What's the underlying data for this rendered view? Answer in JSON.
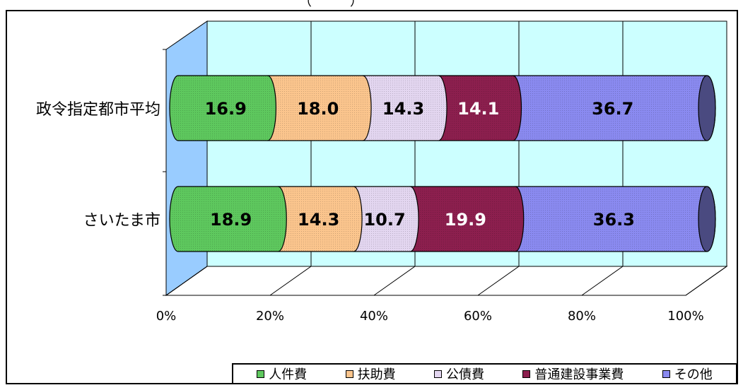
{
  "chart_data": {
    "type": "bar",
    "orientation": "horizontal",
    "stacked": "percent",
    "style": "3d-cylinder",
    "title": "（　　　）",
    "categories": [
      "政令指定都市平均",
      "さいたま市"
    ],
    "series": [
      {
        "name": "人件費",
        "values": [
          16.9,
          18.9
        ],
        "color": "#5ec85e",
        "label_color": "#000000"
      },
      {
        "name": "扶助費",
        "values": [
          18.0,
          14.3
        ],
        "color": "#fbc58d",
        "label_color": "#000000"
      },
      {
        "name": "公債費",
        "values": [
          14.3,
          10.7
        ],
        "color": "#e3d6f0",
        "label_color": "#000000"
      },
      {
        "name": "普通建設事業費",
        "values": [
          14.1,
          19.9
        ],
        "color": "#8c1f4e",
        "label_color": "#ffffff"
      },
      {
        "name": "その他",
        "values": [
          36.7,
          36.3
        ],
        "color": "#8a8af0",
        "label_color": "#000000"
      }
    ],
    "xlim": [
      0,
      100
    ],
    "x_ticks": [
      "0%",
      "20%",
      "40%",
      "60%",
      "80%",
      "100%"
    ],
    "grid": true,
    "legend_position": "bottom-right",
    "wall_color": "#ccffff",
    "side_wall_color": "#99ccff"
  }
}
